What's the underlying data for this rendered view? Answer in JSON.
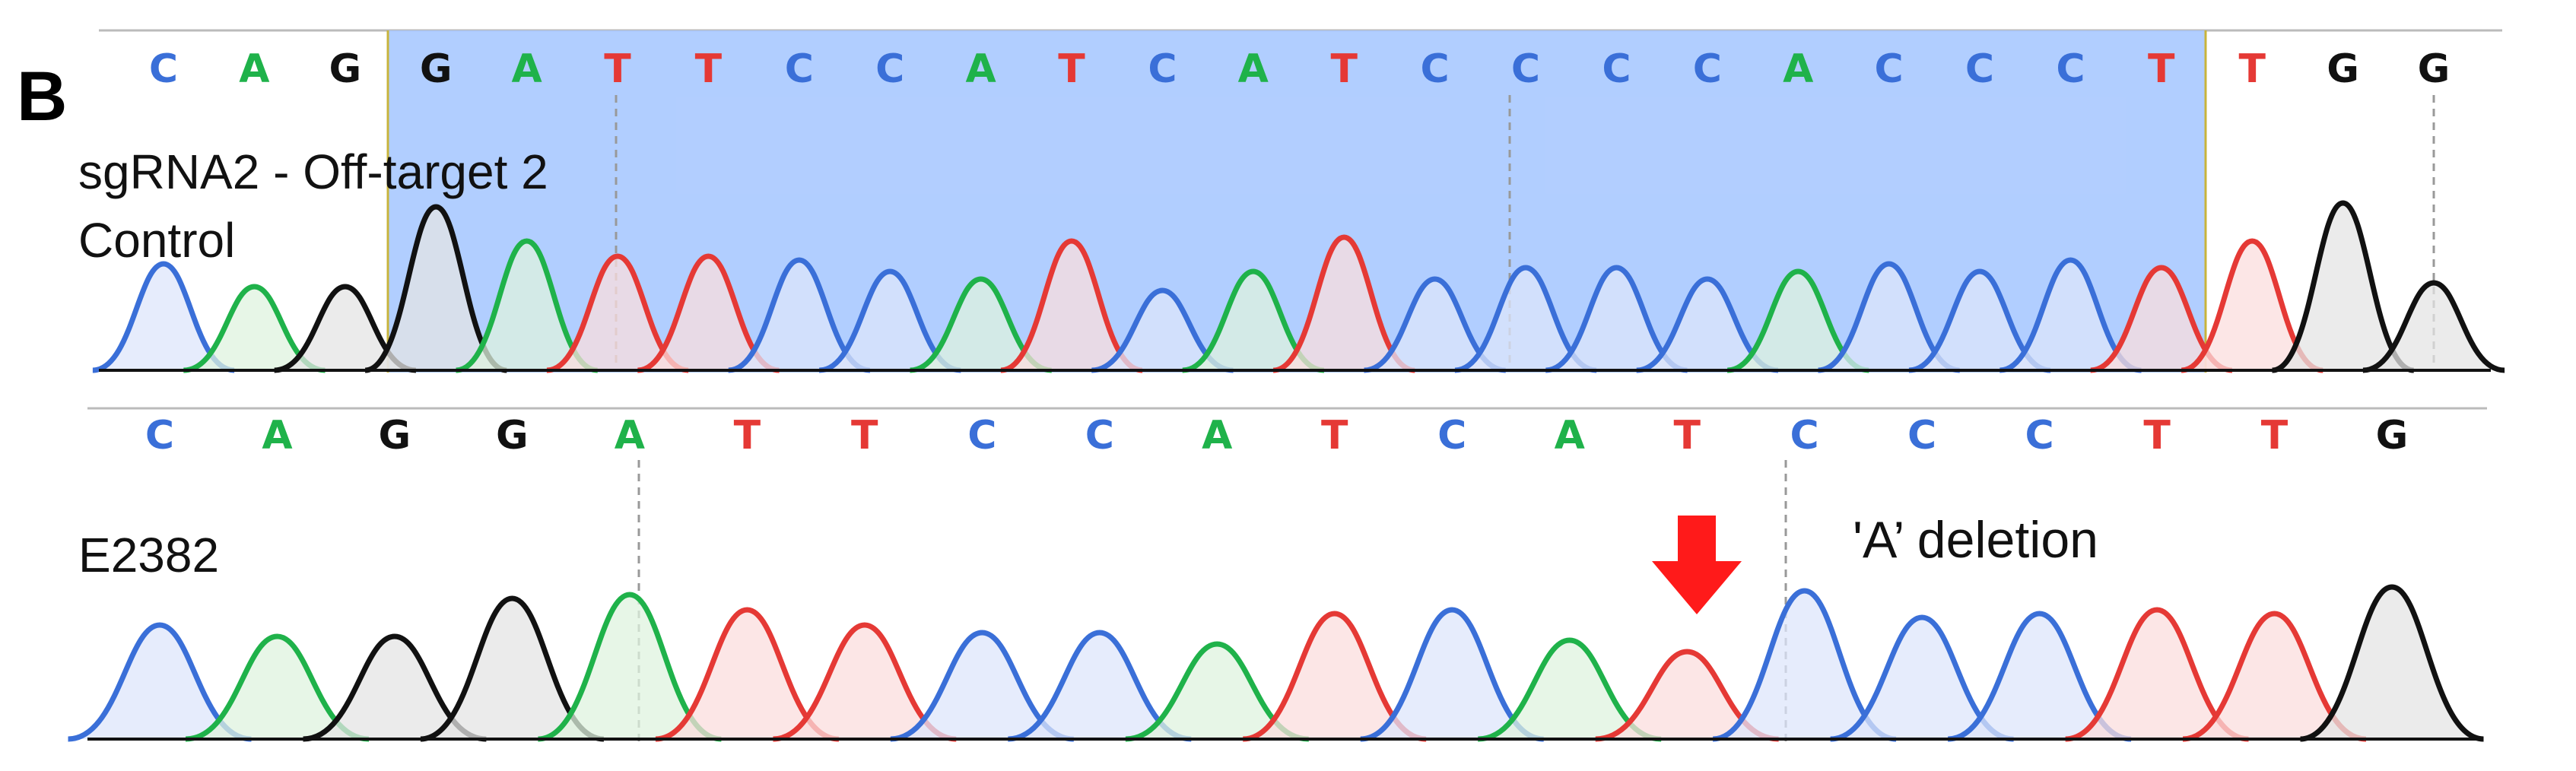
{
  "panel_letter": "B",
  "colors": {
    "A": "#1fb24a",
    "C": "#3a6fd8",
    "G": "#111111",
    "T": "#e53935"
  },
  "panels": [
    {
      "name": "control",
      "labels": [
        "sgRNA2 - Off-target 2",
        "Control"
      ],
      "sequence": [
        "C",
        "A",
        "G",
        "G",
        "A",
        "T",
        "T",
        "C",
        "C",
        "A",
        "T",
        "C",
        "A",
        "T",
        "C",
        "C",
        "C",
        "C",
        "A",
        "C",
        "C",
        "C",
        "T",
        "T",
        "G",
        "G"
      ],
      "highlight": {
        "start": 3,
        "end": 23,
        "color": "#a9c9ff"
      }
    },
    {
      "name": "e2382",
      "labels": [
        "E2382"
      ],
      "sequence": [
        "C",
        "A",
        "G",
        "G",
        "A",
        "T",
        "T",
        "C",
        "C",
        "A",
        "T",
        "C",
        "A",
        "T",
        "C",
        "C",
        "C",
        "T",
        "T",
        "G"
      ],
      "annotation": "'A’ deletion",
      "arrow_color": "#ff1a1a"
    }
  ]
}
